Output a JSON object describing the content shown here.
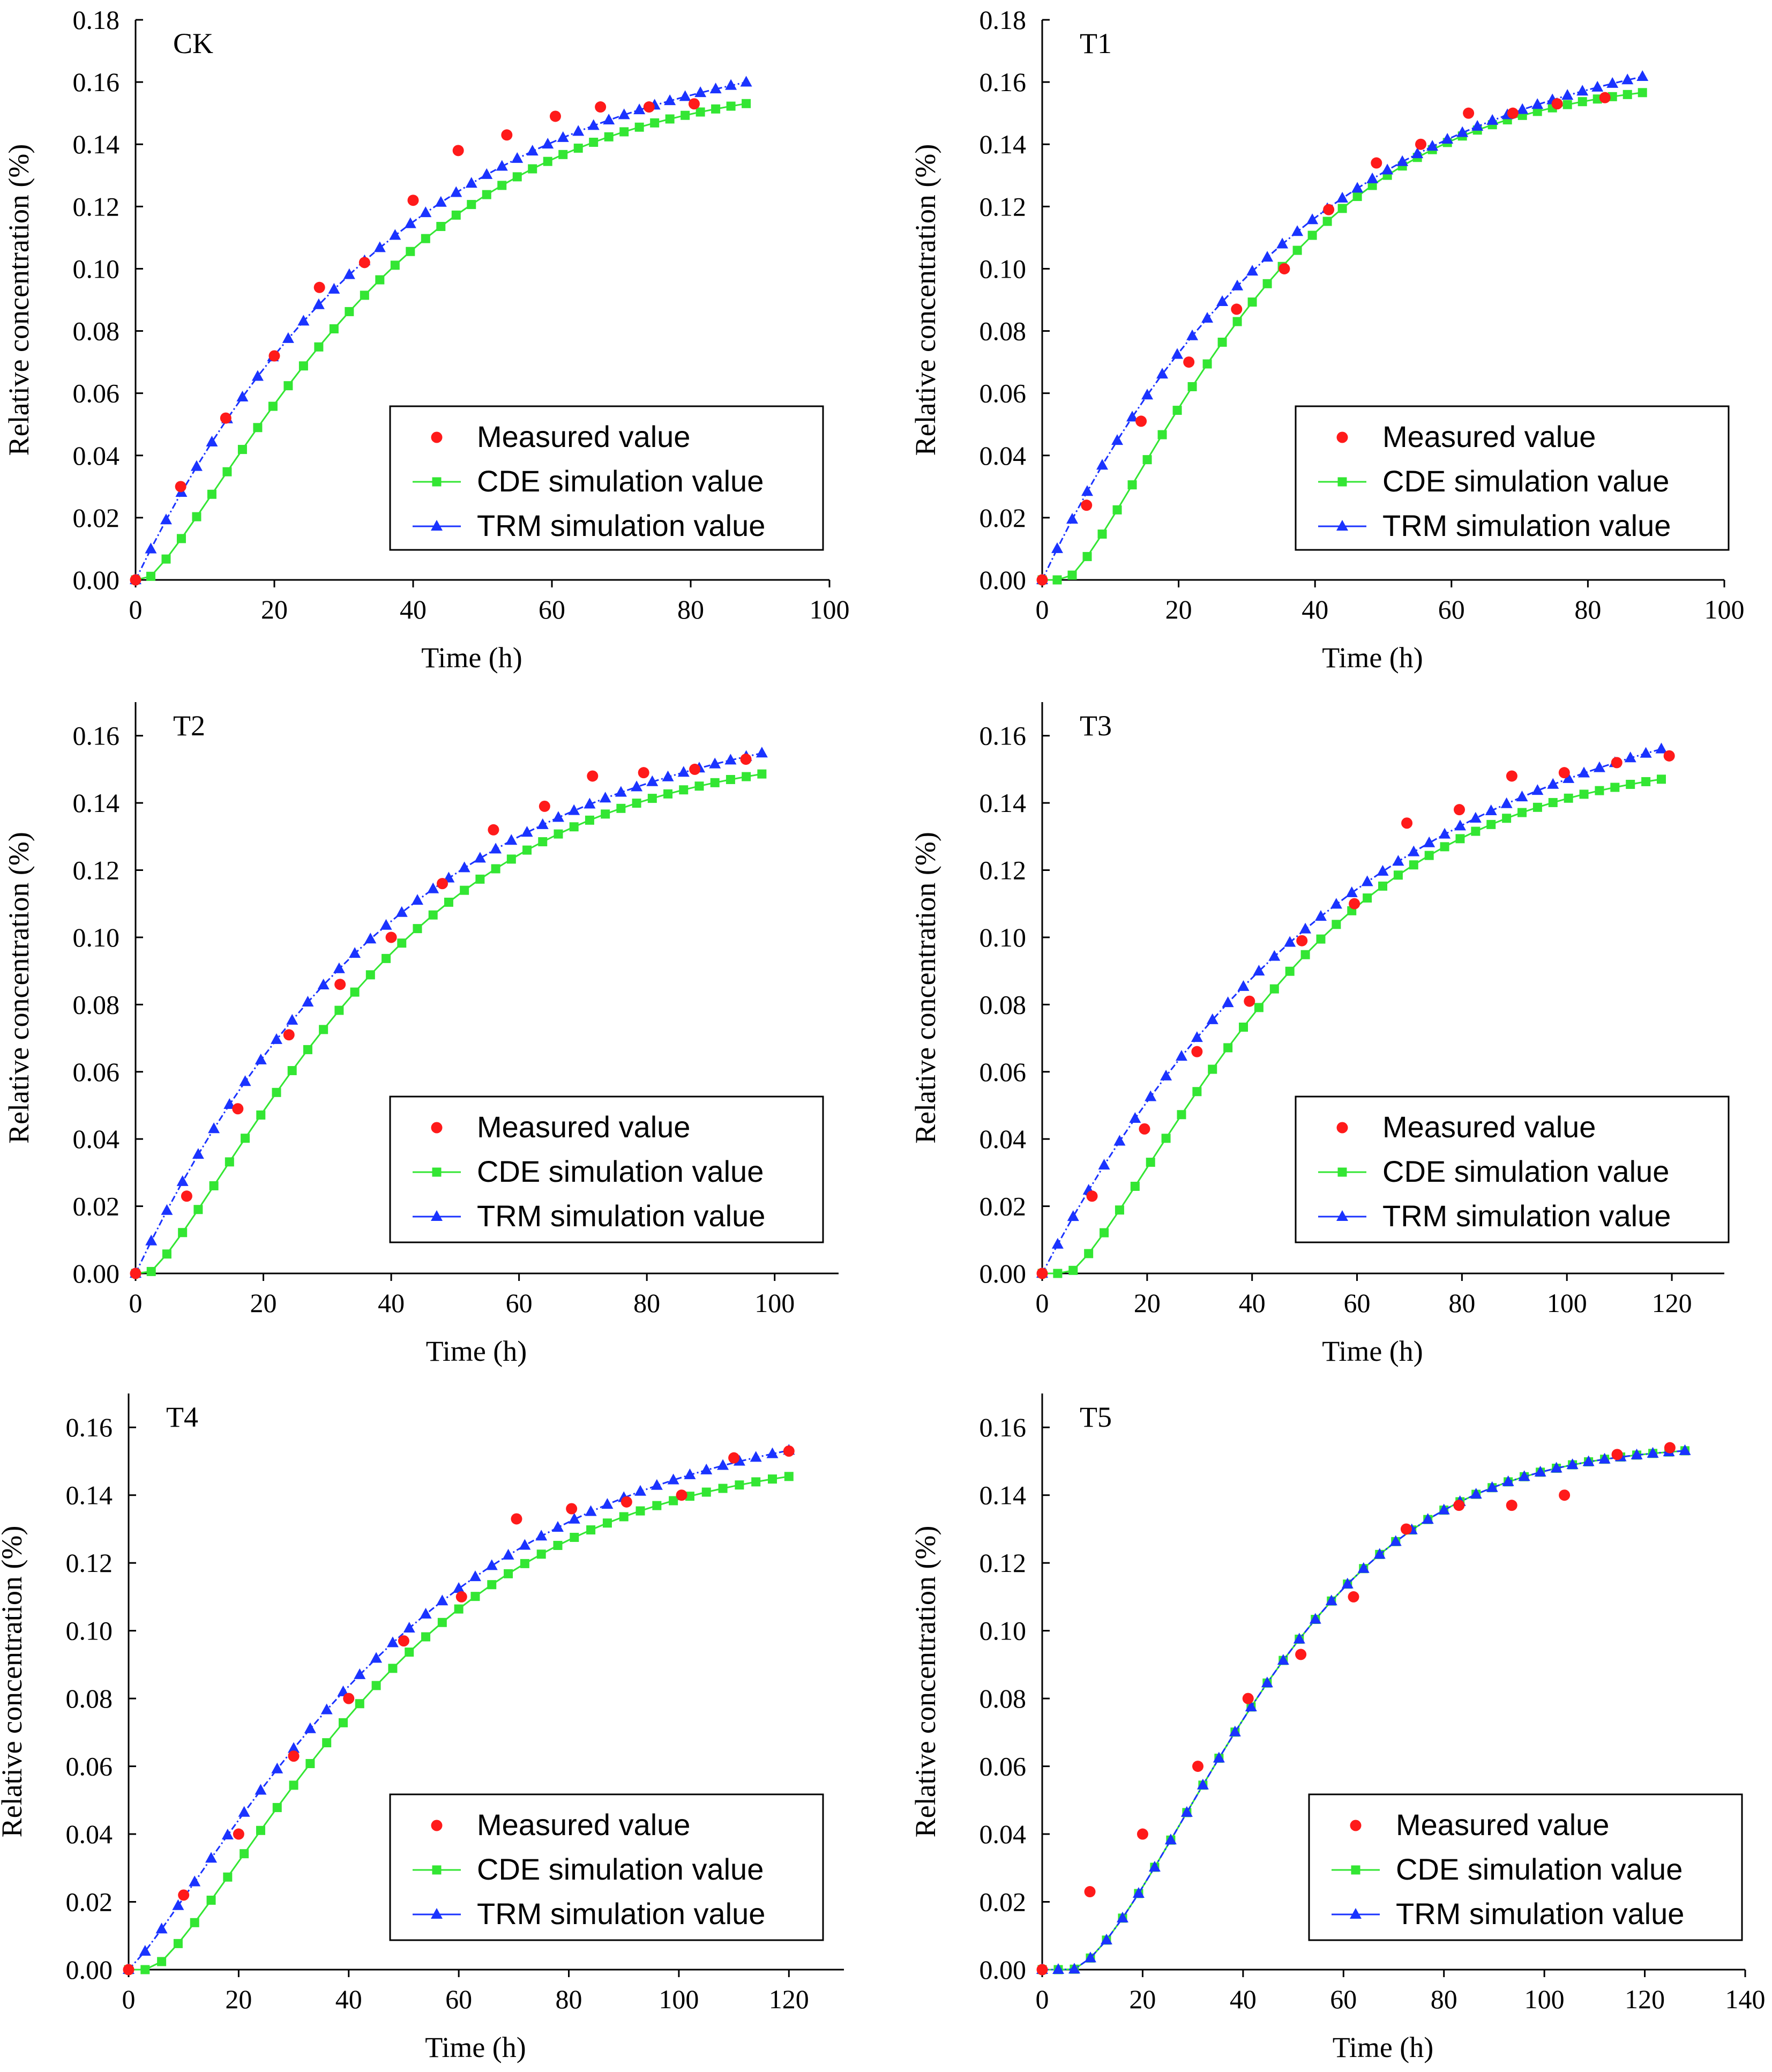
{
  "colors": {
    "measured": "#ff1a1a",
    "cde": "#33e633",
    "trm": "#1a33ff",
    "axis": "#000000"
  },
  "chart_data": [
    {
      "type": "scatter",
      "panel_label": "CK",
      "xlabel": "Time (h)",
      "ylabel": "Relative concentration (%)",
      "xlim": [
        0,
        100
      ],
      "ylim": [
        0,
        0.18
      ],
      "xticks": [
        "0",
        "20",
        "40",
        "60",
        "80",
        "100"
      ],
      "yticks": [
        "0.00",
        "0.02",
        "0.04",
        "0.06",
        "0.08",
        "0.10",
        "0.12",
        "0.14",
        "0.16",
        "0.18"
      ],
      "grid": false,
      "legend_position": "lower-right",
      "legend": [
        "Measured value",
        "CDE  simulation value",
        "TRM  simulation value"
      ],
      "x_end": 88,
      "series": [
        {
          "name": "Measured value",
          "marker": "circle",
          "x": [
            0,
            6.5,
            13,
            20,
            26.5,
            33,
            40,
            46.5,
            53.5,
            60.5,
            67,
            74,
            80.5
          ],
          "y": [
            0.0,
            0.03,
            0.052,
            0.072,
            0.094,
            0.102,
            0.122,
            0.138,
            0.143,
            0.149,
            0.152,
            0.152,
            0.153
          ]
        },
        {
          "name": "CDE  simulation value",
          "marker": "square",
          "model": "cde",
          "n": 40,
          "xstep": 2.2,
          "cmax": 0.1615,
          "t0": 1.5,
          "k": 0.0275,
          "p": 1.25
        },
        {
          "name": "TRM  simulation value",
          "marker": "triangle",
          "model": "trm",
          "n": 40,
          "xstep": 2.2,
          "cmax": 0.178,
          "k": 0.026,
          "p": 1.0
        }
      ]
    },
    {
      "type": "scatter",
      "panel_label": "T1",
      "xlabel": "Time (h)",
      "ylabel": "Relative concentration (%)",
      "xlim": [
        0,
        100
      ],
      "ylim": [
        0,
        0.18
      ],
      "xticks": [
        "0",
        "20",
        "40",
        "60",
        "80",
        "100"
      ],
      "yticks": [
        "0.00",
        "0.02",
        "0.04",
        "0.06",
        "0.08",
        "0.10",
        "0.12",
        "0.14",
        "0.16",
        "0.18"
      ],
      "grid": false,
      "legend_position": "lower-right",
      "legend": [
        "Measured value",
        "CDE  simulation value",
        "TRM  simulation value"
      ],
      "x_end": 88,
      "series": [
        {
          "name": "Measured value",
          "marker": "circle",
          "x": [
            0,
            6.5,
            14.5,
            21.5,
            28.5,
            35.5,
            42,
            49,
            55.5,
            62.5,
            69,
            75.5,
            82.5
          ],
          "y": [
            0.0,
            0.024,
            0.051,
            0.07,
            0.087,
            0.1,
            0.119,
            0.134,
            0.14,
            0.15,
            0.15,
            0.153,
            0.155
          ]
        },
        {
          "name": "CDE  simulation value",
          "marker": "square",
          "model": "cde",
          "n": 40,
          "xstep": 2.2,
          "cmax": 0.1615,
          "t0": 3.5,
          "k": 0.031,
          "p": 1.3
        },
        {
          "name": "TRM  simulation value",
          "marker": "triangle",
          "model": "trm",
          "n": 40,
          "xstep": 2.2,
          "cmax": 0.18,
          "k": 0.026,
          "p": 1.0
        }
      ]
    },
    {
      "type": "scatter",
      "panel_label": "T2",
      "xlabel": "Time (h)",
      "ylabel": "Relative concentration (%)",
      "xlim": [
        0,
        110
      ],
      "ylim": [
        0,
        0.17
      ],
      "xticks": [
        "0",
        "20",
        "40",
        "60",
        "80",
        "100"
      ],
      "yticks": [
        "0.00",
        "0.02",
        "0.04",
        "0.06",
        "0.08",
        "0.10",
        "0.12",
        "0.14",
        "0.16"
      ],
      "grid": false,
      "legend_position": "lower-right",
      "legend": [
        "Measured value",
        "CDE  simulation value",
        "TRM  simulation value"
      ],
      "x_end": 98,
      "series": [
        {
          "name": "Measured value",
          "marker": "circle",
          "x": [
            0,
            8,
            16,
            24,
            32,
            40,
            48,
            56,
            64,
            71.5,
            79.5,
            87.5,
            95.5
          ],
          "y": [
            0.0,
            0.023,
            0.049,
            0.071,
            0.086,
            0.1,
            0.116,
            0.132,
            0.139,
            0.148,
            0.149,
            0.15,
            0.153
          ]
        },
        {
          "name": "CDE  simulation value",
          "marker": "square",
          "model": "cde",
          "n": 40,
          "xstep": 2.45,
          "cmax": 0.1565,
          "t0": 2.0,
          "k": 0.025,
          "p": 1.25
        },
        {
          "name": "TRM  simulation value",
          "marker": "triangle",
          "model": "trm",
          "n": 40,
          "xstep": 2.45,
          "cmax": 0.172,
          "k": 0.0235,
          "p": 1.0
        }
      ]
    },
    {
      "type": "scatter",
      "panel_label": "T3",
      "xlabel": "Time (h)",
      "ylabel": "Relative concentration (%)",
      "xlim": [
        0,
        130
      ],
      "ylim": [
        0,
        0.17
      ],
      "xticks": [
        "0",
        "20",
        "40",
        "60",
        "80",
        "100",
        "120"
      ],
      "yticks": [
        "0.00",
        "0.02",
        "0.04",
        "0.06",
        "0.08",
        "0.10",
        "0.12",
        "0.14",
        "0.16"
      ],
      "grid": false,
      "legend_position": "lower-right",
      "legend": [
        "Measured value",
        "CDE  simulation value",
        "TRM  simulation value"
      ],
      "x_end": 118,
      "series": [
        {
          "name": "Measured value",
          "marker": "circle",
          "x": [
            0,
            9.5,
            19.5,
            29.5,
            39.5,
            49.5,
            59.5,
            69.5,
            79.5,
            89.5,
            99.5,
            109.5,
            119.5
          ],
          "y": [
            0.0,
            0.023,
            0.043,
            0.066,
            0.081,
            0.099,
            0.11,
            0.134,
            0.138,
            0.148,
            0.149,
            0.152,
            0.154
          ]
        },
        {
          "name": "CDE  simulation value",
          "marker": "square",
          "model": "cde",
          "n": 40,
          "xstep": 2.95,
          "cmax": 0.1535,
          "t0": 5.0,
          "k": 0.0215,
          "p": 1.3
        },
        {
          "name": "TRM  simulation value",
          "marker": "triangle",
          "model": "trm",
          "n": 40,
          "xstep": 2.95,
          "cmax": 0.182,
          "k": 0.0165,
          "p": 1.0
        }
      ]
    },
    {
      "type": "scatter",
      "panel_label": "T4",
      "xlabel": "Time (h)",
      "ylabel": "Relative concentration (%)",
      "xlim": [
        0,
        130
      ],
      "ylim": [
        0,
        0.17
      ],
      "xticks": [
        "0",
        "20",
        "40",
        "60",
        "80",
        "100",
        "120"
      ],
      "yticks": [
        "0.00",
        "0.02",
        "0.04",
        "0.06",
        "0.08",
        "0.10",
        "0.12",
        "0.14",
        "0.16"
      ],
      "grid": false,
      "legend_position": "lower-right",
      "legend": [
        "Measured value",
        "CDE  simulation value",
        "TRM  simulation value"
      ],
      "x_end": 120,
      "series": [
        {
          "name": "Measured value",
          "marker": "circle",
          "x": [
            0,
            10,
            20,
            30,
            40,
            50,
            60.5,
            70.5,
            80.5,
            90.5,
            100.5,
            110,
            120
          ],
          "y": [
            0.0,
            0.022,
            0.04,
            0.063,
            0.08,
            0.097,
            0.11,
            0.133,
            0.136,
            0.138,
            0.14,
            0.151,
            0.153
          ]
        },
        {
          "name": "CDE  simulation value",
          "marker": "square",
          "model": "cde",
          "n": 40,
          "xstep": 3.0,
          "cmax": 0.1525,
          "t0": 4.0,
          "k": 0.0205,
          "p": 1.3
        },
        {
          "name": "TRM  simulation value",
          "marker": "triangle",
          "model": "trm",
          "n": 40,
          "xstep": 3.0,
          "cmax": 0.166,
          "k": 0.0185,
          "p": 1.18
        }
      ]
    },
    {
      "type": "scatter",
      "panel_label": "T5",
      "xlabel": "Time (h)",
      "ylabel": "Relative concentration (%)",
      "xlim": [
        0,
        140
      ],
      "ylim": [
        0,
        0.17
      ],
      "xticks": [
        "0",
        "20",
        "40",
        "60",
        "80",
        "100",
        "120",
        "140"
      ],
      "yticks": [
        "0.00",
        "0.02",
        "0.04",
        "0.06",
        "0.08",
        "0.10",
        "0.12",
        "0.14",
        "0.16"
      ],
      "grid": false,
      "legend_position": "lower-right",
      "legend": [
        "Measured value",
        "CDE  simulation value",
        "TRM  simulation value"
      ],
      "x_end": 128,
      "series": [
        {
          "name": "Measured value",
          "marker": "circle",
          "x": [
            0,
            9.5,
            20,
            31,
            41,
            51.5,
            62,
            72.5,
            83,
            93.5,
            104,
            114.5,
            125
          ],
          "y": [
            0.0,
            0.023,
            0.04,
            0.06,
            0.08,
            0.093,
            0.11,
            0.13,
            0.137,
            0.137,
            0.14,
            0.152,
            0.154
          ]
        },
        {
          "name": "CDE  simulation value",
          "marker": "square",
          "model": "cde",
          "n": 40,
          "xstep": 3.2,
          "cmax": 0.155,
          "t0": 6.0,
          "k": 0.022,
          "p": 1.5
        },
        {
          "name": "TRM  simulation value",
          "marker": "triangle",
          "model": "trm-lag",
          "n": 40,
          "xstep": 3.2,
          "cmax": 0.155,
          "t0": 6.0,
          "k": 0.022,
          "p": 1.5
        }
      ]
    }
  ]
}
